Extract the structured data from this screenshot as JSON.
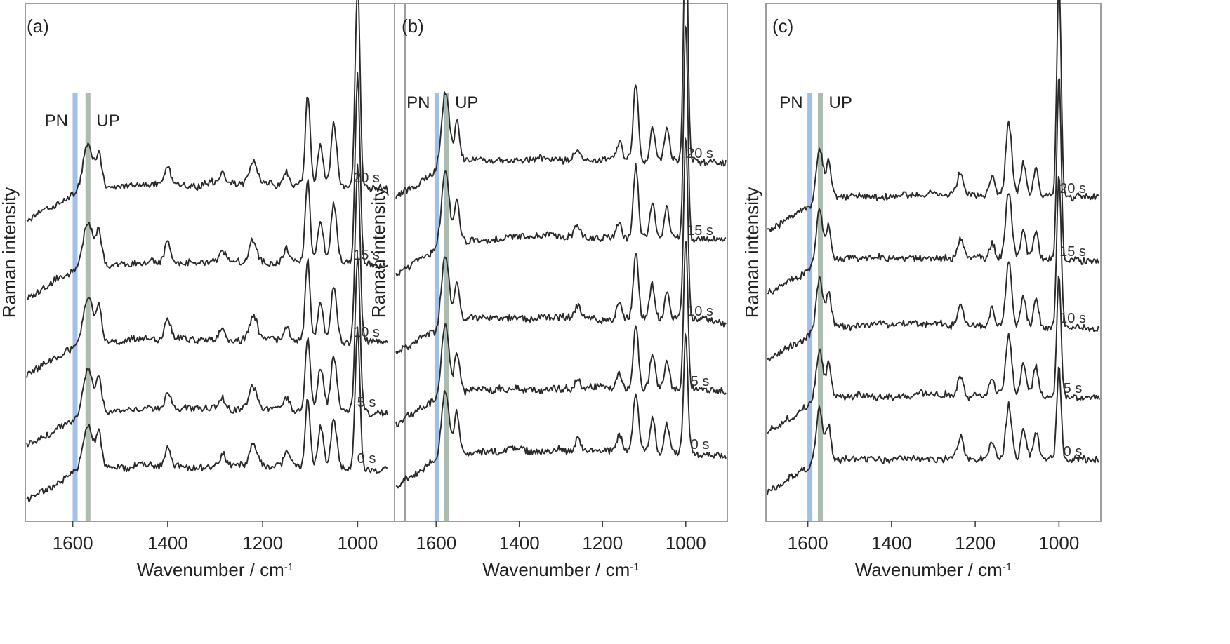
{
  "chart_data": [
    {
      "type": "line",
      "panel_label": "(a)",
      "xlabel": "Wavenumber / cm",
      "xlabel_sup": "-1",
      "ylabel": "Raman intensity",
      "xlim": [
        1700,
        900
      ],
      "xticks": [
        1600,
        1400,
        1200,
        1000
      ],
      "band_labels": [
        "PN",
        "UP"
      ],
      "bands": [
        1595,
        1568
      ],
      "series": [
        {
          "name": "0 s",
          "values": [
            {
              "x": 1000,
              "y": 90
            },
            {
              "x": 1105,
              "y": 78
            },
            {
              "x": 1050,
              "y": 82
            },
            {
              "x": 1568,
              "y": 40
            },
            {
              "x": 1400,
              "y": 20
            }
          ]
        },
        {
          "name": "5 s",
          "values": [
            {
              "x": 1000,
              "y": 92
            },
            {
              "x": 1105,
              "y": 80
            },
            {
              "x": 1050,
              "y": 85
            },
            {
              "x": 1568,
              "y": 42
            }
          ]
        },
        {
          "name": "10 s",
          "values": [
            {
              "x": 1000,
              "y": 95
            },
            {
              "x": 1105,
              "y": 82
            },
            {
              "x": 1050,
              "y": 86
            },
            {
              "x": 1568,
              "y": 44
            }
          ]
        },
        {
          "name": "15 s",
          "values": [
            {
              "x": 1000,
              "y": 98
            },
            {
              "x": 1105,
              "y": 85
            },
            {
              "x": 1050,
              "y": 88
            },
            {
              "x": 1568,
              "y": 46
            }
          ]
        },
        {
          "name": "20 s",
          "values": [
            {
              "x": 1000,
              "y": 100
            },
            {
              "x": 1105,
              "y": 87
            },
            {
              "x": 1050,
              "y": 90
            },
            {
              "x": 1568,
              "y": 48
            }
          ]
        }
      ]
    },
    {
      "type": "line",
      "panel_label": "(b)",
      "xlabel": "Wavenumber / cm",
      "xlabel_sup": "-1",
      "ylabel": "Raman intensity",
      "xlim": [
        1700,
        900
      ],
      "xticks": [
        1600,
        1400,
        1200,
        1000
      ],
      "band_labels": [
        "PN",
        "UP"
      ],
      "bands": [
        1598,
        1575
      ],
      "series": [
        {
          "name": "0 s",
          "values": [
            {
              "x": 1000,
              "y": 85
            },
            {
              "x": 1120,
              "y": 50
            },
            {
              "x": 1580,
              "y": 60
            }
          ]
        },
        {
          "name": "5 s",
          "values": [
            {
              "x": 1000,
              "y": 90
            },
            {
              "x": 1120,
              "y": 55
            },
            {
              "x": 1580,
              "y": 62
            }
          ]
        },
        {
          "name": "10 s",
          "values": [
            {
              "x": 1000,
              "y": 95
            },
            {
              "x": 1120,
              "y": 58
            },
            {
              "x": 1580,
              "y": 64
            }
          ]
        },
        {
          "name": "15 s",
          "values": [
            {
              "x": 1000,
              "y": 98
            },
            {
              "x": 1120,
              "y": 60
            },
            {
              "x": 1580,
              "y": 66
            }
          ]
        },
        {
          "name": "20 s",
          "values": [
            {
              "x": 1000,
              "y": 100
            },
            {
              "x": 1120,
              "y": 62
            },
            {
              "x": 1580,
              "y": 68
            }
          ]
        }
      ]
    },
    {
      "type": "line",
      "panel_label": "(c)",
      "xlabel": "Wavenumber / cm",
      "xlabel_sup": "-1",
      "ylabel": "Raman intensity",
      "xlim": [
        1700,
        900
      ],
      "xticks": [
        1600,
        1400,
        1200,
        1000
      ],
      "band_labels": [
        "PN",
        "UP"
      ],
      "bands": [
        1595,
        1570
      ],
      "series": [
        {
          "name": "0 s",
          "values": [
            {
              "x": 1000,
              "y": 85
            },
            {
              "x": 1120,
              "y": 50
            },
            {
              "x": 1575,
              "y": 55
            }
          ]
        },
        {
          "name": "5 s",
          "values": [
            {
              "x": 1000,
              "y": 90
            },
            {
              "x": 1120,
              "y": 55
            },
            {
              "x": 1575,
              "y": 57
            }
          ]
        },
        {
          "name": "10 s",
          "values": [
            {
              "x": 1000,
              "y": 95
            },
            {
              "x": 1120,
              "y": 58
            },
            {
              "x": 1575,
              "y": 58
            }
          ]
        },
        {
          "name": "15 s",
          "values": [
            {
              "x": 1000,
              "y": 98
            },
            {
              "x": 1120,
              "y": 60
            },
            {
              "x": 1575,
              "y": 59
            }
          ]
        },
        {
          "name": "20 s",
          "values": [
            {
              "x": 1000,
              "y": 100
            },
            {
              "x": 1120,
              "y": 62
            },
            {
              "x": 1575,
              "y": 60
            }
          ]
        }
      ]
    }
  ],
  "colors": {
    "pn_band": "#9dbde6",
    "up_band": "#a9b8aa",
    "frame": "#9aa09c",
    "trace": "#2a2a2a"
  }
}
